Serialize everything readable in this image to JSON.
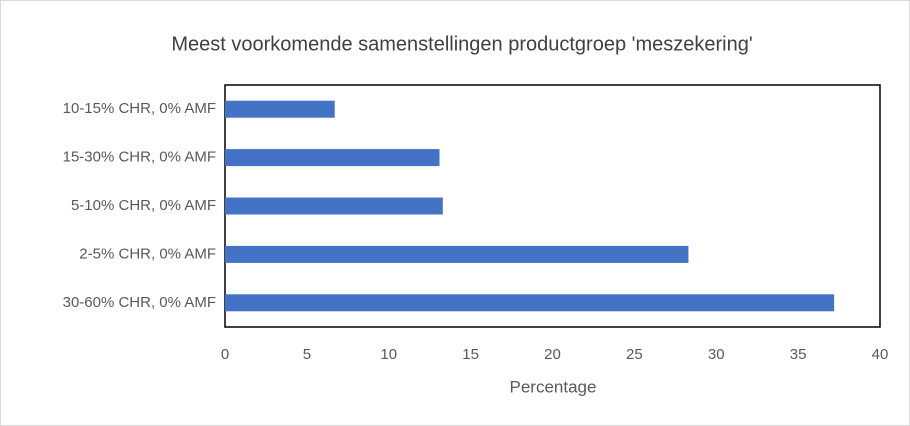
{
  "chart_data": {
    "type": "bar",
    "orientation": "horizontal",
    "title": "Meest voorkomende samenstellingen productgroep 'meszekering'",
    "x_label": "Percentage",
    "categories": [
      "10-15% CHR, 0% AMF",
      "15-30% CHR, 0% AMF",
      "5-10% CHR, 0% AMF",
      "2-5% CHR, 0% AMF",
      "30-60% CHR, 0% AMF"
    ],
    "values": [
      6.7,
      13.1,
      13.3,
      28.3,
      37.2
    ],
    "color": "#4472c4",
    "xlim": [
      0,
      40
    ],
    "xticks": [
      0,
      5,
      10,
      15,
      20,
      25,
      30,
      35,
      40
    ],
    "grid": false
  }
}
